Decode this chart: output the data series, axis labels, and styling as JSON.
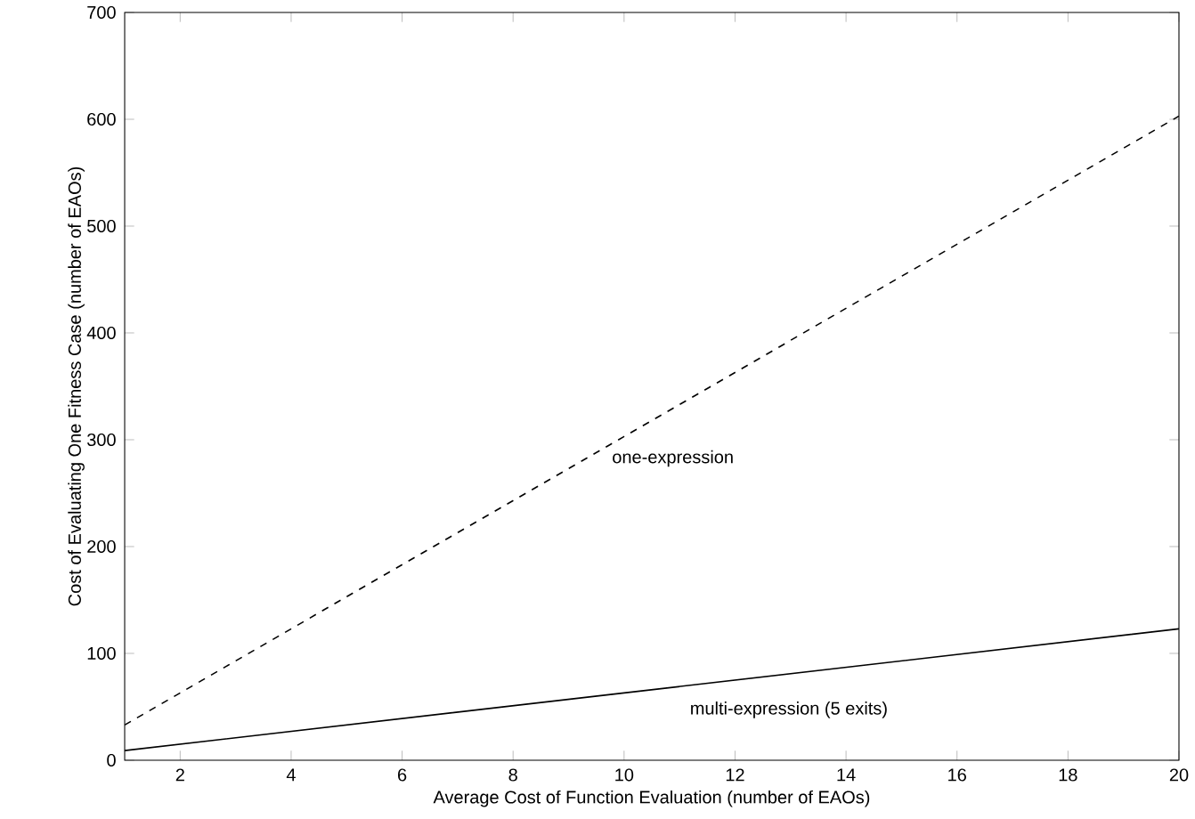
{
  "chart_data": {
    "type": "line",
    "xlabel": "Average Cost of Function Evaluation (number of EAOs)",
    "ylabel": "Cost of Evaluating One Fitness Case (number of EAOs)",
    "series": [
      {
        "name": "one-expression",
        "color": "#000000",
        "line_style": "dashed",
        "x": [
          1,
          10,
          20
        ],
        "values": [
          33,
          303,
          603
        ]
      },
      {
        "name": "multi-expression (5 exits)",
        "color": "#000000",
        "line_style": "solid",
        "x": [
          1,
          10,
          20
        ],
        "values": [
          9,
          63,
          123
        ]
      }
    ],
    "xlim": [
      1,
      20
    ],
    "ylim": [
      0,
      700
    ],
    "xticks": [
      2,
      4,
      6,
      8,
      10,
      12,
      14,
      16,
      18,
      20
    ],
    "yticks": [
      0,
      100,
      200,
      300,
      400,
      500,
      600,
      700
    ],
    "grid": false,
    "legend": false
  }
}
